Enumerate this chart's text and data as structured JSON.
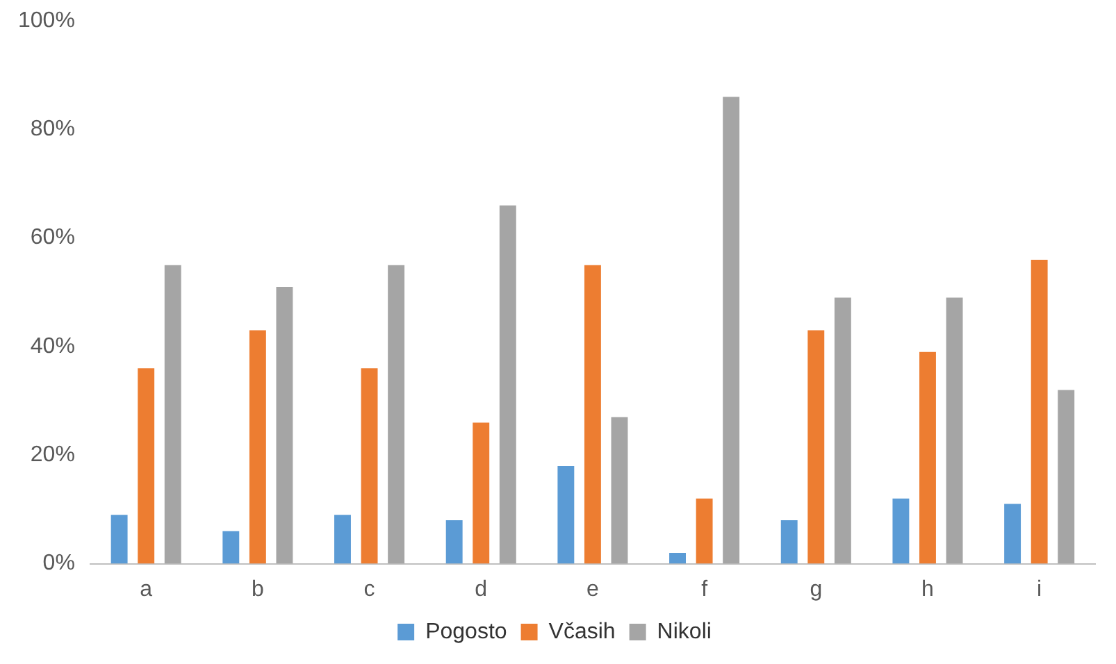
{
  "chart_data": {
    "type": "bar",
    "categories": [
      "a",
      "b",
      "c",
      "d",
      "e",
      "f",
      "g",
      "h",
      "i"
    ],
    "series": [
      {
        "name": "Pogosto",
        "color": "#5b9bd5",
        "values": [
          9,
          6,
          9,
          8,
          18,
          2,
          8,
          12,
          11
        ]
      },
      {
        "name": "Včasih",
        "color": "#ed7d31",
        "values": [
          36,
          43,
          36,
          26,
          55,
          12,
          43,
          39,
          56
        ]
      },
      {
        "name": "Nikoli",
        "color": "#a5a5a5",
        "values": [
          55,
          51,
          55,
          66,
          27,
          86,
          49,
          49,
          32
        ]
      }
    ],
    "ylim": [
      0,
      100
    ],
    "yticks": [
      {
        "value": 0,
        "label": "0%"
      },
      {
        "value": 20,
        "label": "20%"
      },
      {
        "value": 40,
        "label": "40%"
      },
      {
        "value": 60,
        "label": "60%"
      },
      {
        "value": 80,
        "label": "80%"
      },
      {
        "value": 100,
        "label": "100%"
      }
    ],
    "grid": false,
    "legend": "bottom"
  }
}
